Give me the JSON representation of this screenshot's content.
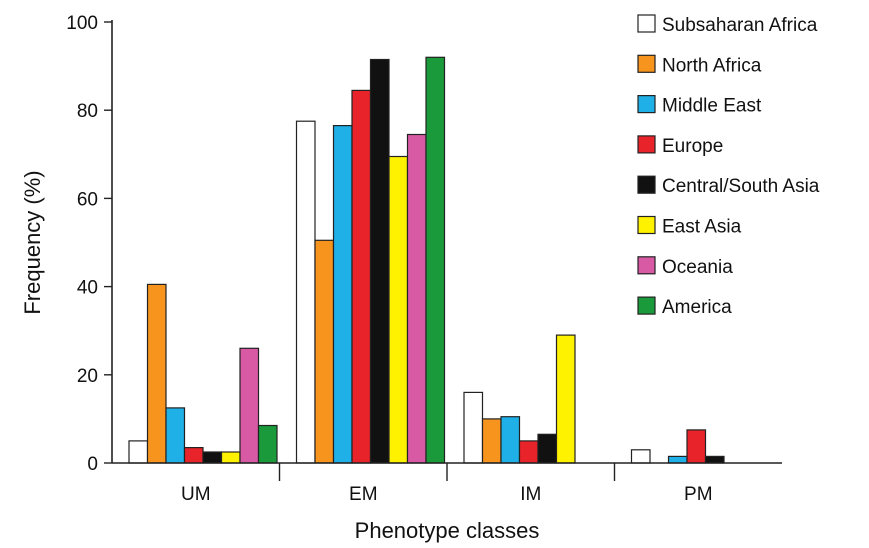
{
  "chart_data": {
    "type": "bar",
    "categories": [
      "UM",
      "EM",
      "IM",
      "PM"
    ],
    "xlabel": "Phenotype classes",
    "ylabel": "Frequency (%)",
    "ylim": [
      0,
      100
    ],
    "yticks": [
      0,
      20,
      40,
      60,
      80,
      100
    ],
    "grid": false,
    "legend_position": "top-right",
    "series": [
      {
        "name": "Subsaharan Africa",
        "color": "#ffffff",
        "values": [
          5,
          77.5,
          16,
          3
        ]
      },
      {
        "name": "North Africa",
        "color": "#f7941d",
        "values": [
          40.5,
          50.5,
          10,
          0
        ]
      },
      {
        "name": "Middle East",
        "color": "#1eb0e6",
        "values": [
          12.5,
          76.5,
          10.5,
          1.5
        ]
      },
      {
        "name": "Europe",
        "color": "#e8232a",
        "values": [
          3.5,
          84.5,
          5,
          7.5
        ]
      },
      {
        "name": "Central/South Asia",
        "color": "#111111",
        "values": [
          2.5,
          91.5,
          6.5,
          1.5
        ]
      },
      {
        "name": "East Asia",
        "color": "#fff200",
        "values": [
          2.5,
          69.5,
          29,
          0
        ]
      },
      {
        "name": "Oceania",
        "color": "#d85aa5",
        "values": [
          26,
          74.5,
          0,
          0
        ]
      },
      {
        "name": "America",
        "color": "#1a9a3a",
        "values": [
          8.5,
          92,
          0,
          0
        ]
      }
    ]
  }
}
